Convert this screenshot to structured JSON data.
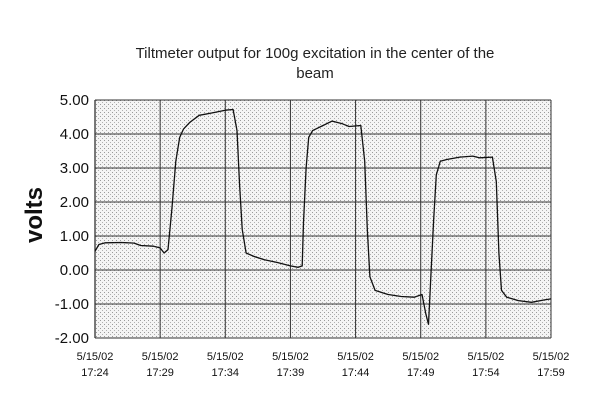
{
  "chart_data": {
    "type": "line",
    "title_lines": [
      "Tiltmeter output for 100g excitation in the center of the",
      "beam"
    ],
    "xlabel": "",
    "ylabel": "volts",
    "ylim": [
      -2.0,
      5.0
    ],
    "y_ticks": [
      "-2.00",
      "-1.00",
      "0.00",
      "1.00",
      "2.00",
      "3.00",
      "4.00",
      "5.00"
    ],
    "y_tick_values": [
      -2,
      -1,
      0,
      1,
      2,
      3,
      4,
      5
    ],
    "xlim": [
      0,
      35
    ],
    "x_ticks": [
      {
        "date": "5/15/02",
        "time": "17:24",
        "minute": 0
      },
      {
        "date": "5/15/02",
        "time": "17:29",
        "minute": 5
      },
      {
        "date": "5/15/02",
        "time": "17:34",
        "minute": 10
      },
      {
        "date": "5/15/02",
        "time": "17:39",
        "minute": 15
      },
      {
        "date": "5/15/02",
        "time": "17:44",
        "minute": 20
      },
      {
        "date": "5/15/02",
        "time": "17:49",
        "minute": 25
      },
      {
        "date": "5/15/02",
        "time": "17:54",
        "minute": 30
      },
      {
        "date": "5/15/02",
        "time": "17:59",
        "minute": 35
      }
    ],
    "grid": true,
    "background": "stippled",
    "line_color": "#111111",
    "series": [
      {
        "points": [
          [
            0.0,
            0.55
          ],
          [
            0.3,
            0.75
          ],
          [
            0.8,
            0.8
          ],
          [
            2.0,
            0.81
          ],
          [
            3.0,
            0.79
          ],
          [
            3.5,
            0.72
          ],
          [
            4.5,
            0.7
          ],
          [
            5.0,
            0.65
          ],
          [
            5.3,
            0.5
          ],
          [
            5.6,
            0.6
          ],
          [
            5.9,
            1.8
          ],
          [
            6.2,
            3.2
          ],
          [
            6.5,
            3.9
          ],
          [
            6.8,
            4.15
          ],
          [
            7.3,
            4.35
          ],
          [
            8.0,
            4.55
          ],
          [
            9.0,
            4.62
          ],
          [
            10.0,
            4.7
          ],
          [
            10.6,
            4.72
          ],
          [
            10.9,
            4.1
          ],
          [
            11.1,
            2.5
          ],
          [
            11.3,
            1.2
          ],
          [
            11.6,
            0.5
          ],
          [
            12.2,
            0.4
          ],
          [
            13.0,
            0.3
          ],
          [
            14.0,
            0.22
          ],
          [
            15.0,
            0.12
          ],
          [
            15.6,
            0.08
          ],
          [
            15.9,
            0.12
          ],
          [
            16.0,
            1.4
          ],
          [
            16.2,
            3.0
          ],
          [
            16.4,
            3.9
          ],
          [
            16.7,
            4.1
          ],
          [
            17.5,
            4.25
          ],
          [
            18.2,
            4.38
          ],
          [
            19.0,
            4.3
          ],
          [
            19.5,
            4.22
          ],
          [
            20.4,
            4.25
          ],
          [
            20.7,
            3.2
          ],
          [
            20.9,
            1.2
          ],
          [
            21.1,
            -0.2
          ],
          [
            21.5,
            -0.6
          ],
          [
            22.5,
            -0.72
          ],
          [
            23.5,
            -0.78
          ],
          [
            24.5,
            -0.8
          ],
          [
            25.1,
            -0.72
          ],
          [
            25.4,
            -1.3
          ],
          [
            25.6,
            -1.6
          ],
          [
            25.75,
            -0.4
          ],
          [
            26.0,
            1.5
          ],
          [
            26.2,
            2.8
          ],
          [
            26.5,
            3.2
          ],
          [
            27.0,
            3.25
          ],
          [
            28.0,
            3.32
          ],
          [
            29.0,
            3.35
          ],
          [
            29.5,
            3.3
          ],
          [
            30.5,
            3.32
          ],
          [
            30.8,
            2.6
          ],
          [
            31.0,
            0.5
          ],
          [
            31.2,
            -0.6
          ],
          [
            31.6,
            -0.8
          ],
          [
            32.5,
            -0.9
          ],
          [
            33.5,
            -0.95
          ],
          [
            34.5,
            -0.88
          ],
          [
            35.0,
            -0.85
          ]
        ]
      }
    ]
  }
}
